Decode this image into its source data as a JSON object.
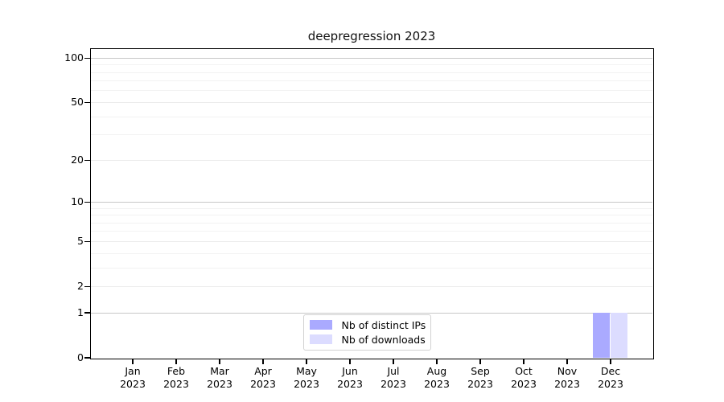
{
  "chart_data": {
    "type": "bar",
    "title": "deepregression 2023",
    "year": "2023",
    "categories": [
      "Jan",
      "Feb",
      "Mar",
      "Apr",
      "May",
      "Jun",
      "Jul",
      "Aug",
      "Sep",
      "Oct",
      "Nov",
      "Dec"
    ],
    "series": [
      {
        "name": "Nb of distinct IPs",
        "color": "#aaaaff",
        "values": [
          0,
          0,
          0,
          0,
          0,
          0,
          0,
          0,
          0,
          0,
          0,
          1
        ]
      },
      {
        "name": "Nb of downloads",
        "color": "#dcdcff",
        "values": [
          0,
          0,
          0,
          0,
          0,
          0,
          0,
          0,
          0,
          0,
          0,
          1
        ]
      }
    ],
    "xlabel": "",
    "ylabel": "",
    "yscale": "log1p",
    "ylim": [
      0,
      115
    ],
    "yticks": [
      100,
      50,
      20,
      10,
      5,
      2,
      1,
      0
    ],
    "minor_gridlines": [
      90,
      80,
      70,
      60,
      40,
      30,
      9,
      8,
      7,
      6,
      4,
      3
    ],
    "decade_gridlines": [
      100,
      10,
      1
    ],
    "grid": true,
    "legend_position": "bottom-center"
  },
  "colors": {
    "spine": "#000000",
    "decade_gridline": "#c8c8c8",
    "gridline": "#ececec",
    "minor_gridline": "#f2f2f2",
    "legend_border": "#d2d2d2",
    "background": "#ffffff",
    "text": "#000000"
  }
}
